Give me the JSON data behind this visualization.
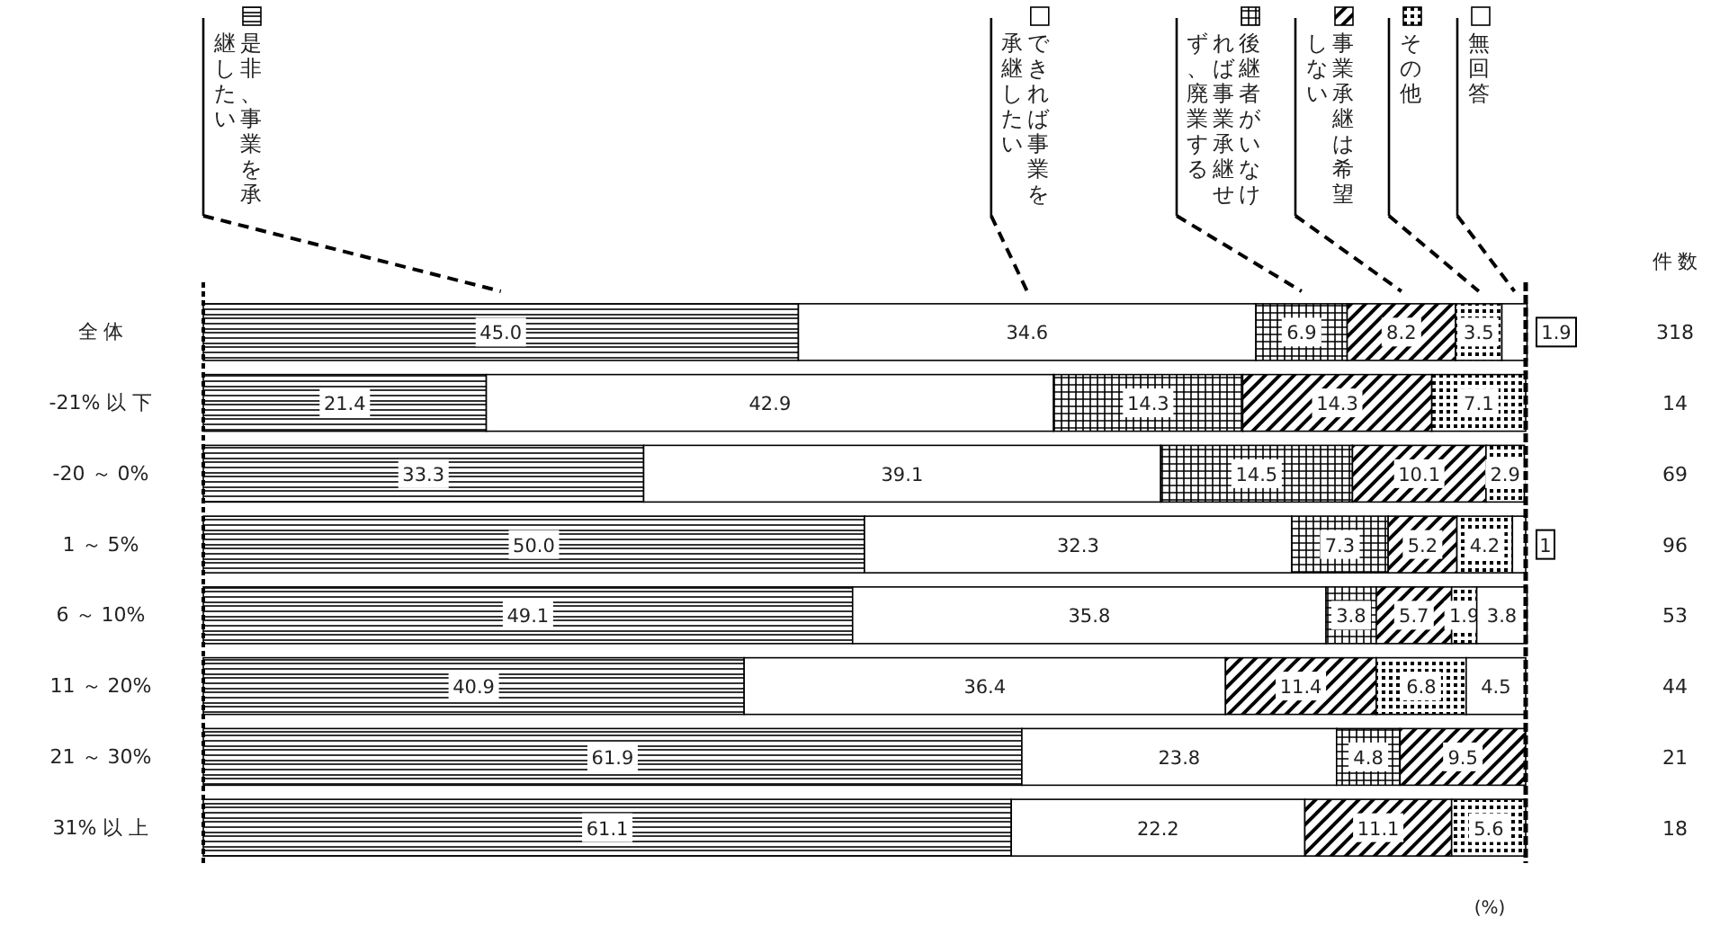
{
  "chart_data": {
    "type": "bar",
    "orientation": "horizontal",
    "stacked": true,
    "legend": "top",
    "xlim": [
      0,
      100
    ],
    "tick_labels": "y",
    "categories": [
      "全 体",
      "-21% 以 下",
      "-20 ～ 0%",
      "1 ～ 5%",
      "6 ～ 10%",
      "11 ～ 20%",
      "21 ～ 30%",
      "31% 以 上"
    ],
    "series": [
      {
        "name": "是非、事業を承継したい",
        "color": "#000000",
        "values": [
          45.0,
          21.4,
          33.3,
          50.0,
          49.1,
          40.9,
          61.9,
          61.1
        ],
        "value_labels": [
          "45.0",
          "21.4",
          "33.3",
          "50.0",
          "49.1",
          "40.9",
          "61.9",
          "61.1"
        ]
      },
      {
        "name": "できれば事業を承継したい",
        "color": "#000000",
        "values": [
          34.6,
          42.9,
          39.1,
          32.3,
          35.8,
          36.4,
          23.8,
          22.2
        ],
        "value_labels": [
          "34.6",
          "42.9",
          "39.1",
          "32.3",
          "35.8",
          "36.4",
          "23.8",
          "22.2"
        ]
      },
      {
        "name": "後継者がいなければ事業承継せず、廃業する",
        "color": "#000000",
        "values": [
          6.9,
          14.3,
          14.5,
          7.3,
          3.8,
          null,
          4.8,
          null
        ],
        "value_labels": [
          "6.9",
          "14.3",
          "14.5",
          "7.3",
          "3.8",
          null,
          "4.8",
          null
        ]
      },
      {
        "name": "事業承継は希望しない",
        "color": "#000000",
        "values": [
          8.2,
          14.3,
          10.1,
          5.2,
          5.7,
          11.4,
          9.5,
          11.1
        ],
        "value_labels": [
          "8.2",
          "14.3",
          "10.1",
          "5.2",
          "5.7",
          "11.4",
          "9.5",
          "11.1"
        ]
      },
      {
        "name": "その他",
        "color": "#000000",
        "values": [
          3.5,
          7.1,
          2.9,
          4.2,
          1.9,
          6.8,
          null,
          5.6
        ],
        "value_labels": [
          "3.5",
          "7.1",
          "2.9",
          "4.2",
          "1.9",
          "6.8",
          null,
          "5.6"
        ]
      },
      {
        "name": "無回答",
        "color": "#000000",
        "values": [
          1.9,
          null,
          null,
          1.0,
          3.8,
          4.5,
          null,
          null
        ],
        "value_labels": [
          "1.9",
          null,
          null,
          "1",
          "3.8",
          "4.5",
          null,
          null
        ]
      }
    ],
    "annotations": [
      "件 数",
      "(%)",
      "318",
      "14",
      "69",
      "96",
      "53",
      "44",
      "21",
      "18"
    ]
  }
}
